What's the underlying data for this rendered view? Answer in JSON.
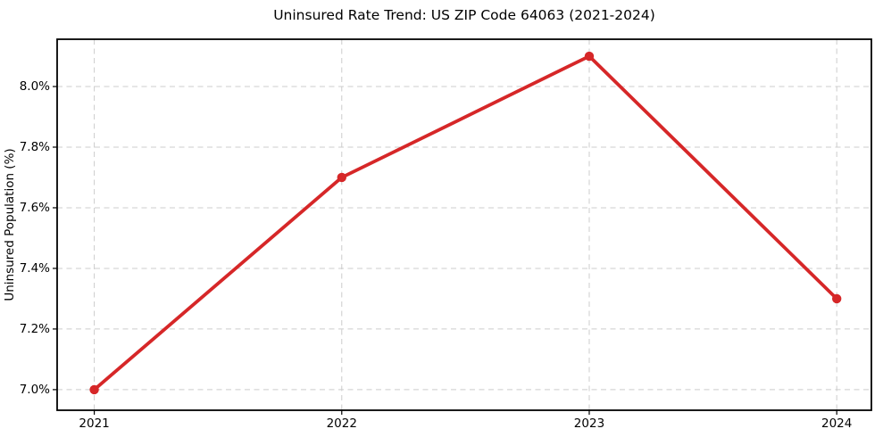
{
  "chart_data": {
    "type": "line",
    "title": "Uninsured Rate Trend: US ZIP Code 64063 (2021-2024)",
    "xlabel": "",
    "ylabel": "Uninsured Population (%)",
    "x": [
      2021,
      2022,
      2023,
      2024
    ],
    "values": [
      7.0,
      7.7,
      8.1,
      7.3
    ],
    "xtick_labels": [
      "2021",
      "2022",
      "2023",
      "2024"
    ],
    "yticks": [
      7.0,
      7.2,
      7.4,
      7.6,
      7.8,
      8.0
    ],
    "ytick_labels": [
      "7.0%",
      "7.2%",
      "7.4%",
      "7.6%",
      "7.8%",
      "8.0%"
    ],
    "xlim": [
      2020.85,
      2024.14
    ],
    "ylim": [
      6.932,
      8.156
    ],
    "grid": true,
    "legend": false,
    "line_color": "#d62728",
    "marker_color": "#d62728",
    "grid_color": "#cccccc",
    "axis_color": "#000000"
  }
}
